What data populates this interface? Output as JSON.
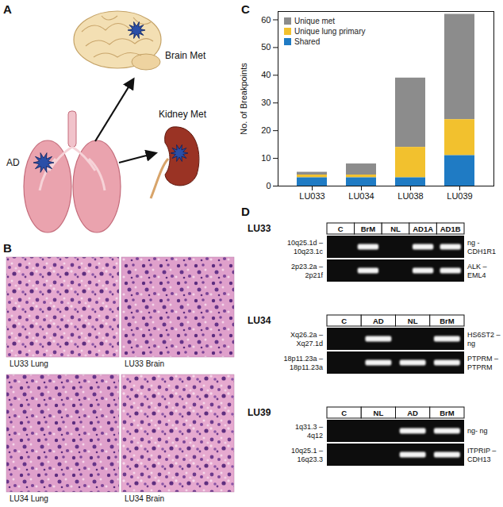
{
  "panel_labels": [
    "A",
    "B",
    "C",
    "D"
  ],
  "diagram": {
    "primary": "AD",
    "metastases": [
      "Brain Met",
      "Kidney Met"
    ]
  },
  "histology": {
    "images": [
      "LU33 Lung",
      "LU33 Brain",
      "LU34 Lung",
      "LU34 Brain"
    ]
  },
  "gel": {
    "cases": [
      {
        "name": "LU33",
        "lanes": [
          "C",
          "BrM",
          "NL",
          "AD1A",
          "AD1B"
        ],
        "rows": [
          {
            "left": [
              "10q25.1d –",
              "10q23.1c"
            ],
            "right": [
              "ng -",
              "CDH1R1"
            ],
            "bands": [
              false,
              true,
              false,
              true,
              true
            ]
          },
          {
            "left": [
              "2p23.2a –",
              "2p21f"
            ],
            "right": [
              "ALK –",
              "EML4"
            ],
            "bands": [
              false,
              true,
              false,
              true,
              true
            ]
          }
        ]
      },
      {
        "name": "LU34",
        "lanes": [
          "C",
          "AD",
          "NL",
          "BrM"
        ],
        "rows": [
          {
            "left": [
              "Xq26.2a –",
              "Xq27.1d"
            ],
            "right": [
              "HS6ST2 –",
              "ng"
            ],
            "bands": [
              false,
              true,
              false,
              true
            ]
          },
          {
            "left": [
              "18p11.23a –",
              "18p11.23a"
            ],
            "right": [
              "PTPRM –",
              "PTPRM"
            ],
            "bands": [
              false,
              true,
              true,
              true
            ]
          }
        ]
      },
      {
        "name": "LU39",
        "lanes": [
          "C",
          "NL",
          "AD",
          "BrM"
        ],
        "rows": [
          {
            "left": [
              "1q31.3 –",
              "4q12"
            ],
            "right": [
              "ng- ng"
            ],
            "bands": [
              false,
              false,
              true,
              true
            ]
          },
          {
            "left": [
              "10q25.1 –",
              "16q23.3"
            ],
            "right": [
              "ITPRIP –",
              "CDH13"
            ],
            "bands": [
              false,
              false,
              true,
              true
            ]
          }
        ]
      }
    ]
  },
  "chart_data": {
    "type": "bar",
    "stacked": true,
    "categories": [
      "LU033",
      "LU034",
      "LU038",
      "LU039"
    ],
    "series": [
      {
        "name": "Unique met",
        "color": "#8c8c8c",
        "values": [
          1,
          4,
          25,
          38
        ]
      },
      {
        "name": "Unique lung primary",
        "color": "#f2c12e",
        "values": [
          1,
          1,
          11,
          13
        ]
      },
      {
        "name": "Shared",
        "color": "#1f7bc4",
        "values": [
          3,
          3,
          3,
          11
        ]
      }
    ],
    "y_label": "No. of Breakpoints",
    "ylim": [
      0,
      63
    ],
    "yticks": [
      0,
      10,
      20,
      30,
      40,
      50,
      60
    ],
    "legend": "top-left"
  }
}
